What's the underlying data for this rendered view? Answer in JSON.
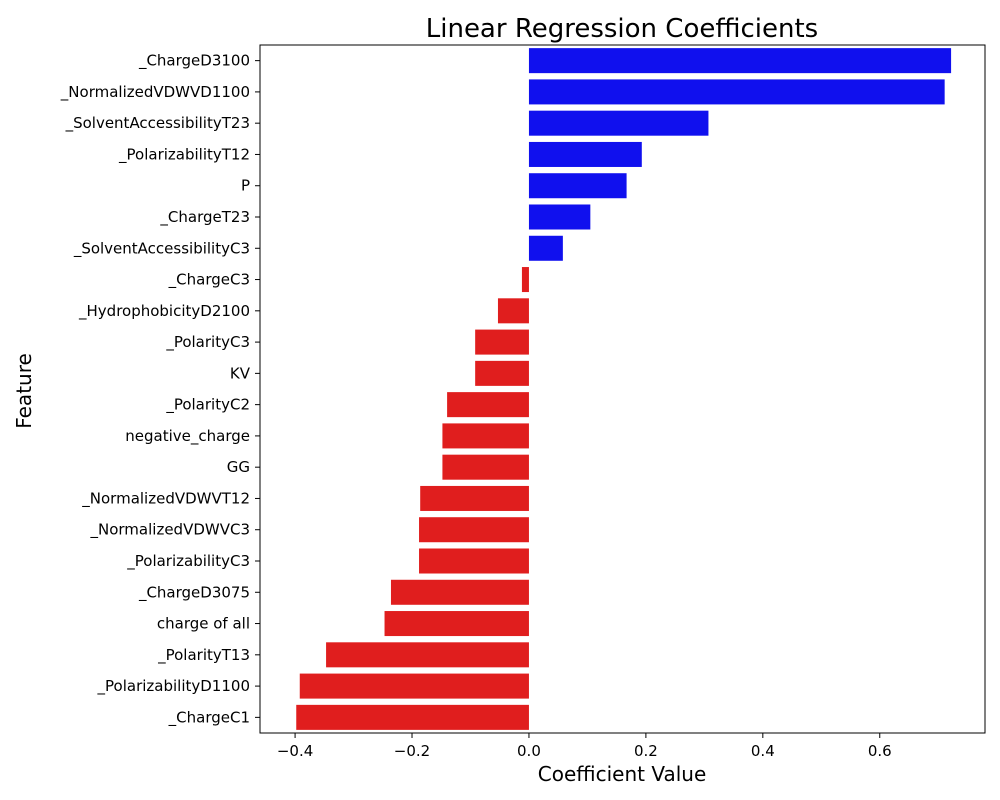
{
  "chart_data": {
    "type": "bar",
    "orientation": "horizontal",
    "title": "Linear Regression Coefficients",
    "xlabel": "Coefficient Value",
    "ylabel": "Feature",
    "xlim": [
      -0.46,
      0.78
    ],
    "xticks": [
      -0.4,
      -0.2,
      0.0,
      0.2,
      0.4,
      0.6
    ],
    "xtick_labels": [
      "−0.4",
      "−0.2",
      "0.0",
      "0.2",
      "0.4",
      "0.6"
    ],
    "grid": false,
    "colors": {
      "positive": "#1010ee",
      "negative": "#e01e1e"
    },
    "categories": [
      "_ChargeD3100",
      "_NormalizedVDWVD1100",
      "_SolventAccessibilityT23",
      "_PolarizabilityT12",
      "P",
      "_ChargeT23",
      "_SolventAccessibilityC3",
      "_ChargeC3",
      "_HydrophobicityD2100",
      "_PolarityC3",
      "KV",
      "_PolarityC2",
      "negative_charge",
      "GG",
      "_NormalizedVDWVT12",
      "_NormalizedVDWVC3",
      "_PolarizabilityC3",
      "_ChargeD3075",
      "charge of all",
      "_PolarityT13",
      "_PolarizabilityD1100",
      "_ChargeC1"
    ],
    "values": [
      0.722,
      0.711,
      0.307,
      0.193,
      0.167,
      0.105,
      0.058,
      -0.012,
      -0.053,
      -0.092,
      -0.092,
      -0.14,
      -0.148,
      -0.148,
      -0.186,
      -0.188,
      -0.188,
      -0.236,
      -0.247,
      -0.347,
      -0.392,
      -0.398
    ]
  }
}
